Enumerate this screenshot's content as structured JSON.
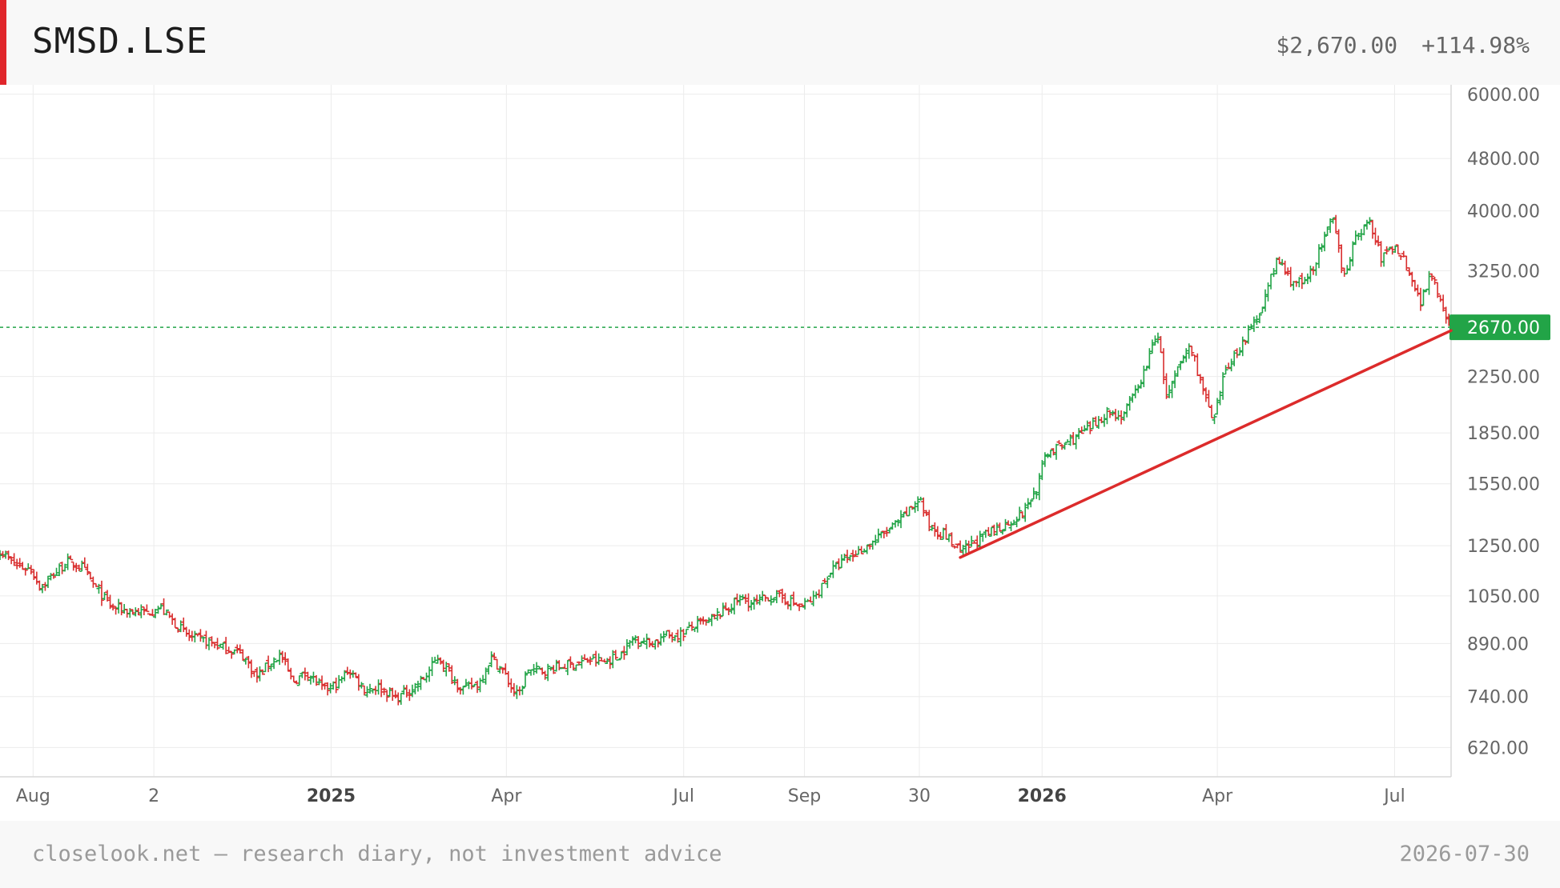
{
  "header": {
    "ticker": "SMSD.LSE",
    "price": "$2,670.00",
    "change_pct": "+114.98%"
  },
  "footer": {
    "caption": "closelook.net — research diary, not investment advice",
    "date": "2026-07-30"
  },
  "colors": {
    "accent": "#e0262b",
    "up": "#22a447",
    "down": "#d92f2f",
    "trendline": "#dc2b2b",
    "price_line": "#22a447",
    "grid": "#ececec"
  },
  "chart_data": {
    "type": "ohlc",
    "scale": "log",
    "grid": true,
    "x_range": [
      "2024-07-15",
      "2026-07-30"
    ],
    "y_range": [
      560,
      6200
    ],
    "y_ticks": [
      "6000.00",
      "4800.00",
      "4000.00",
      "3250.00",
      "2250.00",
      "1850.00",
      "1550.00",
      "1250.00",
      "1050.00",
      "890.00",
      "740.00",
      "620.00"
    ],
    "x_ticks": [
      {
        "date": "2024-08-01",
        "label": "Aug",
        "bold": false
      },
      {
        "date": "2024-10-02",
        "label": "2",
        "bold": false
      },
      {
        "date": "2025-01-01",
        "label": "2025",
        "bold": true
      },
      {
        "date": "2025-04-01",
        "label": "Apr",
        "bold": false
      },
      {
        "date": "2025-07-01",
        "label": "Jul",
        "bold": false
      },
      {
        "date": "2025-09-01",
        "label": "Sep",
        "bold": false
      },
      {
        "date": "2025-10-30",
        "label": "30",
        "bold": false
      },
      {
        "date": "2026-01-01",
        "label": "2026",
        "bold": true
      },
      {
        "date": "2026-04-01",
        "label": "Apr",
        "bold": false
      },
      {
        "date": "2026-07-01",
        "label": "Jul",
        "bold": false
      }
    ],
    "last_price": 2670,
    "last_price_label": "2670.00",
    "close_path": [
      [
        "2024-07-15",
        1230
      ],
      [
        "2024-07-22",
        1170
      ],
      [
        "2024-07-31",
        1150
      ],
      [
        "2024-08-05",
        1080
      ],
      [
        "2024-08-10",
        1120
      ],
      [
        "2024-08-18",
        1180
      ],
      [
        "2024-08-26",
        1160
      ],
      [
        "2024-09-02",
        1080
      ],
      [
        "2024-09-10",
        1010
      ],
      [
        "2024-09-20",
        995
      ],
      [
        "2024-09-28",
        990
      ],
      [
        "2024-10-05",
        1010
      ],
      [
        "2024-10-12",
        960
      ],
      [
        "2024-10-20",
        910
      ],
      [
        "2024-10-30",
        895
      ],
      [
        "2024-11-08",
        875
      ],
      [
        "2024-11-16",
        860
      ],
      [
        "2024-11-24",
        790
      ],
      [
        "2024-11-30",
        830
      ],
      [
        "2024-12-06",
        855
      ],
      [
        "2024-12-12",
        780
      ],
      [
        "2024-12-20",
        805
      ],
      [
        "2024-12-28",
        755
      ],
      [
        "2025-01-05",
        775
      ],
      [
        "2025-01-10",
        815
      ],
      [
        "2025-01-18",
        760
      ],
      [
        "2025-01-26",
        765
      ],
      [
        "2025-02-03",
        735
      ],
      [
        "2025-02-10",
        755
      ],
      [
        "2025-02-18",
        790
      ],
      [
        "2025-02-25",
        850
      ],
      [
        "2025-03-04",
        790
      ],
      [
        "2025-03-10",
        760
      ],
      [
        "2025-03-18",
        775
      ],
      [
        "2025-03-24",
        850
      ],
      [
        "2025-03-30",
        810
      ],
      [
        "2025-04-04",
        760
      ],
      [
        "2025-04-07",
        740
      ],
      [
        "2025-04-12",
        810
      ],
      [
        "2025-04-20",
        810
      ],
      [
        "2025-04-28",
        820
      ],
      [
        "2025-05-06",
        830
      ],
      [
        "2025-05-14",
        840
      ],
      [
        "2025-05-22",
        835
      ],
      [
        "2025-05-30",
        860
      ],
      [
        "2025-06-06",
        910
      ],
      [
        "2025-06-14",
        890
      ],
      [
        "2025-06-22",
        915
      ],
      [
        "2025-06-30",
        920
      ],
      [
        "2025-07-06",
        945
      ],
      [
        "2025-07-14",
        960
      ],
      [
        "2025-07-22",
        1000
      ],
      [
        "2025-07-30",
        1040
      ],
      [
        "2025-08-06",
        1020
      ],
      [
        "2025-08-14",
        1050
      ],
      [
        "2025-08-22",
        1040
      ],
      [
        "2025-08-30",
        1010
      ],
      [
        "2025-09-06",
        1040
      ],
      [
        "2025-09-14",
        1140
      ],
      [
        "2025-09-22",
        1190
      ],
      [
        "2025-09-30",
        1230
      ],
      [
        "2025-10-08",
        1280
      ],
      [
        "2025-10-16",
        1330
      ],
      [
        "2025-10-24",
        1400
      ],
      [
        "2025-10-30",
        1480
      ],
      [
        "2025-11-04",
        1340
      ],
      [
        "2025-11-12",
        1300
      ],
      [
        "2025-11-20",
        1220
      ],
      [
        "2025-11-28",
        1270
      ],
      [
        "2025-12-06",
        1310
      ],
      [
        "2025-12-14",
        1350
      ],
      [
        "2025-12-22",
        1400
      ],
      [
        "2025-12-30",
        1540
      ],
      [
        "2026-01-03",
        1730
      ],
      [
        "2026-01-10",
        1760
      ],
      [
        "2026-01-18",
        1820
      ],
      [
        "2026-01-26",
        1880
      ],
      [
        "2026-02-03",
        1990
      ],
      [
        "2026-02-11",
        1960
      ],
      [
        "2026-02-19",
        2150
      ],
      [
        "2026-02-25",
        2400
      ],
      [
        "2026-03-01",
        2660
      ],
      [
        "2026-03-06",
        2080
      ],
      [
        "2026-03-12",
        2310
      ],
      [
        "2026-03-18",
        2520
      ],
      [
        "2026-03-24",
        2180
      ],
      [
        "2026-03-30",
        1900
      ],
      [
        "2026-04-05",
        2300
      ],
      [
        "2026-04-12",
        2480
      ],
      [
        "2026-04-20",
        2700
      ],
      [
        "2026-04-26",
        3000
      ],
      [
        "2026-05-02",
        3400
      ],
      [
        "2026-05-08",
        3150
      ],
      [
        "2026-05-16",
        3100
      ],
      [
        "2026-05-24",
        3500
      ],
      [
        "2026-05-30",
        3900
      ],
      [
        "2026-06-05",
        3200
      ],
      [
        "2026-06-12",
        3700
      ],
      [
        "2026-06-18",
        3850
      ],
      [
        "2026-06-24",
        3400
      ],
      [
        "2026-07-01",
        3550
      ],
      [
        "2026-07-08",
        3300
      ],
      [
        "2026-07-14",
        2900
      ],
      [
        "2026-07-20",
        3250
      ],
      [
        "2026-07-26",
        2850
      ],
      [
        "2026-07-30",
        2670
      ]
    ],
    "trendline": [
      [
        "2025-11-20",
        1200
      ],
      [
        "2026-07-30",
        2640
      ]
    ]
  }
}
